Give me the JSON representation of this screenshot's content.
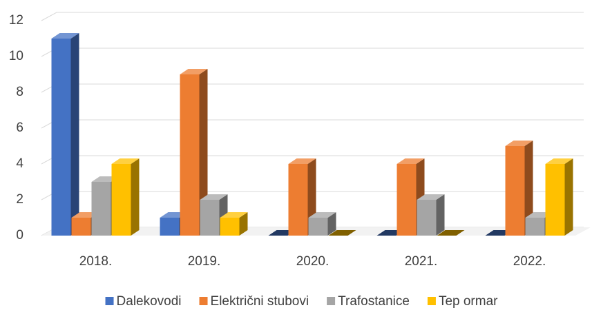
{
  "chart_data": {
    "type": "bar3d",
    "categories": [
      "2018.",
      "2019.",
      "2020.",
      "2021.",
      "2022."
    ],
    "series": [
      {
        "name": "Dalekovodi",
        "color": "#4472c4",
        "values": [
          11,
          1,
          0,
          0,
          0
        ]
      },
      {
        "name": "Električni stubovi",
        "color": "#ed7d31",
        "values": [
          1,
          9,
          4,
          4,
          5
        ]
      },
      {
        "name": "Trafostanice",
        "color": "#a5a5a5",
        "values": [
          3,
          2,
          1,
          2,
          1
        ]
      },
      {
        "name": "Tep ormar",
        "color": "#ffc000",
        "values": [
          4,
          1,
          0,
          0,
          4
        ]
      }
    ],
    "ylim": [
      0,
      12
    ],
    "yticks": [
      0,
      2,
      4,
      6,
      8,
      10,
      12
    ],
    "grid": true,
    "legend": "bottom"
  }
}
